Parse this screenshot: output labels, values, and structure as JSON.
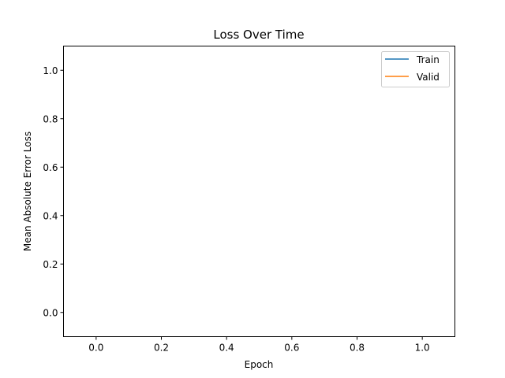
{
  "chart_data": {
    "type": "line",
    "title": "Loss Over Time",
    "xlabel": "Epoch",
    "ylabel": "Mean Absolute Error Loss",
    "xlim": [
      -0.1,
      1.1
    ],
    "ylim": [
      -0.1,
      1.1
    ],
    "xticks": [
      0.0,
      0.2,
      0.4,
      0.6,
      0.8,
      1.0
    ],
    "yticks": [
      0.0,
      0.2,
      0.4,
      0.6,
      0.8,
      1.0
    ],
    "xtick_labels": [
      "0.0",
      "0.2",
      "0.4",
      "0.6",
      "0.8",
      "1.0"
    ],
    "ytick_labels": [
      "0.0",
      "0.2",
      "0.4",
      "0.6",
      "0.8",
      "1.0"
    ],
    "grid": false,
    "legend_position": "top-right",
    "series": [
      {
        "name": "Train",
        "color": "#1f77b4",
        "x": [],
        "y": []
      },
      {
        "name": "Valid",
        "color": "#ff7f0e",
        "x": [],
        "y": []
      }
    ]
  }
}
